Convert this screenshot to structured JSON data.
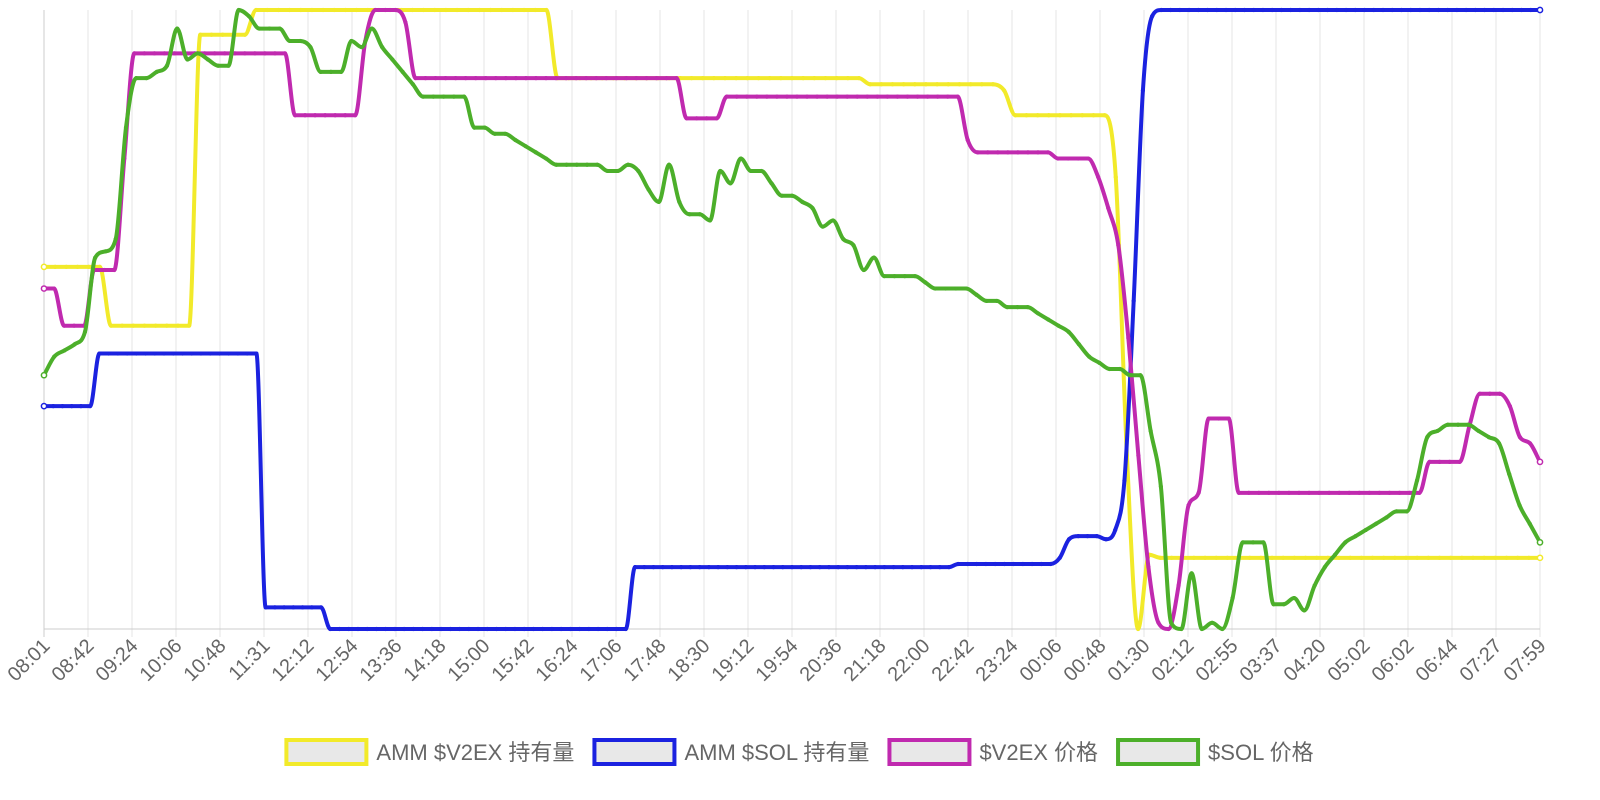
{
  "chart_data": {
    "type": "line",
    "x_ticks": [
      "08:01",
      "08:42",
      "09:24",
      "10:06",
      "10:48",
      "11:31",
      "12:12",
      "12:54",
      "13:36",
      "14:18",
      "15:00",
      "15:42",
      "16:24",
      "17:06",
      "17:48",
      "18:30",
      "19:12",
      "19:54",
      "20:36",
      "21:18",
      "22:00",
      "22:42",
      "23:24",
      "00:06",
      "00:48",
      "01:30",
      "02:12",
      "02:55",
      "03:37",
      "04:20",
      "05:02",
      "06:02",
      "06:44",
      "07:27",
      "07:59"
    ],
    "x_tick_rotation_deg": -45,
    "grid": {
      "vertical": true,
      "horizontal": false
    },
    "y_axis": {
      "visible_labels": false,
      "ylim": [
        0,
        100
      ]
    },
    "legend": {
      "position": "bottom"
    },
    "series": [
      {
        "name": "AMM $V2EX 持有量",
        "color": "#f2ea2a",
        "values": [
          58.5,
          58.5,
          58.5,
          58.5,
          58.5,
          58.5,
          49,
          49,
          49,
          49,
          49,
          49,
          49,
          49,
          96,
          96,
          96,
          96,
          96,
          100,
          100,
          100,
          100,
          100,
          100,
          100,
          100,
          100,
          100,
          100,
          100,
          100,
          100,
          100,
          100,
          100,
          100,
          100,
          100,
          100,
          100,
          100,
          100,
          100,
          100,
          100,
          89,
          89,
          89,
          89,
          89,
          89,
          89,
          89,
          89,
          89,
          89,
          89,
          89,
          89,
          89,
          89,
          89,
          89,
          89,
          89,
          89,
          89,
          89,
          89,
          89,
          89,
          89,
          89,
          88,
          88,
          88,
          88,
          88,
          88,
          88,
          88,
          88,
          88,
          88,
          88,
          87,
          83,
          83,
          83,
          83,
          83,
          83,
          83,
          83,
          83,
          73,
          28,
          0,
          12,
          11.5,
          11.5,
          11.5,
          11.5,
          11.5,
          11.5,
          11.5,
          11.5,
          11.5,
          11.5,
          11.5,
          11.5,
          11.5,
          11.5,
          11.5,
          11.5,
          11.5,
          11.5,
          11.5,
          11.5,
          11.5,
          11.5,
          11.5,
          11.5,
          11.5,
          11.5,
          11.5,
          11.5,
          11.5,
          11.5,
          11.5,
          11.5,
          11.5,
          11.5,
          11.5
        ]
      },
      {
        "name": "AMM $SOL 持有量",
        "color": "#1b22e0",
        "values": [
          36,
          36,
          36,
          36,
          36,
          36,
          44.5,
          44.5,
          44.5,
          44.5,
          44.5,
          44.5,
          44.5,
          44.5,
          44.5,
          44.5,
          44.5,
          44.5,
          44.5,
          44.5,
          44.5,
          44.5,
          44.5,
          44.5,
          3.5,
          3.5,
          3.5,
          3.5,
          3.5,
          3.5,
          3.5,
          0,
          0,
          0,
          0,
          0,
          0,
          0,
          0,
          0,
          0,
          0,
          0,
          0,
          0,
          0,
          0,
          0,
          0,
          0,
          0,
          0,
          0,
          0,
          0,
          0,
          0,
          0,
          0,
          0,
          0,
          0,
          0,
          0,
          10,
          10,
          10,
          10,
          10,
          10,
          10,
          10,
          10,
          10,
          10,
          10,
          10,
          10,
          10,
          10,
          10,
          10,
          10,
          10,
          10,
          10,
          10,
          10,
          10,
          10,
          10,
          10,
          10,
          10,
          10,
          10,
          10,
          10,
          10,
          10.5,
          10.5,
          10.5,
          10.5,
          10.5,
          10.5,
          10.5,
          10.5,
          10.5,
          10.5,
          10.5,
          11.5,
          14.5,
          15,
          15,
          15,
          14.5,
          16,
          24,
          53,
          87,
          99,
          100,
          100,
          100,
          100,
          100,
          100,
          100,
          100,
          100,
          100,
          100,
          100,
          100,
          100,
          100,
          100,
          100,
          100,
          100,
          100,
          100,
          100,
          100,
          100,
          100,
          100,
          100,
          100,
          100,
          100,
          100,
          100,
          100,
          100,
          100,
          100,
          100,
          100,
          100,
          100,
          100,
          100
        ]
      },
      {
        "name": "$V2EX 价格",
        "color": "#c02aaf",
        "values": [
          55,
          55,
          49,
          49,
          49,
          58,
          58,
          58,
          76,
          93,
          93,
          93,
          93,
          93,
          93,
          93,
          93,
          93,
          93,
          93,
          93,
          93,
          93,
          93,
          93,
          83,
          83,
          83,
          83,
          83,
          83,
          83,
          95,
          100,
          100,
          100,
          98,
          89,
          89,
          89,
          89,
          89,
          89,
          89,
          89,
          89,
          89,
          89,
          89,
          89,
          89,
          89,
          89,
          89,
          89,
          89,
          89,
          89,
          89,
          89,
          89,
          89,
          89,
          89,
          82.5,
          82.5,
          82.5,
          82.5,
          86,
          86,
          86,
          86,
          86,
          86,
          86,
          86,
          86,
          86,
          86,
          86,
          86,
          86,
          86,
          86,
          86,
          86,
          86,
          86,
          86,
          86,
          86,
          86,
          79,
          77,
          77,
          77,
          77,
          77,
          77,
          77,
          77,
          76,
          76,
          76,
          76,
          73,
          68,
          62,
          47,
          28,
          10,
          1,
          0,
          7,
          20,
          22,
          34,
          34,
          34,
          22,
          22,
          22,
          22,
          22,
          22,
          22,
          22,
          22,
          22,
          22,
          22,
          22,
          22,
          22,
          22,
          22,
          22,
          22,
          27,
          27,
          27,
          27,
          33,
          38,
          38,
          38,
          36,
          31,
          30,
          27
        ]
      },
      {
        "name": "$SOL 价格",
        "color": "#4caf2a",
        "values": [
          41,
          44,
          45,
          46,
          48,
          60,
          61,
          63,
          81,
          89,
          89,
          90,
          91,
          97,
          92,
          93,
          92,
          91,
          91,
          100,
          99,
          97,
          97,
          97,
          95,
          95,
          94,
          90,
          90,
          90,
          95,
          94,
          97,
          94,
          92,
          90,
          88,
          86,
          86,
          86,
          86,
          86,
          81,
          81,
          80,
          80,
          79,
          78,
          77,
          76,
          75,
          75,
          75,
          75,
          75,
          74,
          74,
          75,
          74,
          71,
          69,
          75,
          69,
          67,
          67,
          66,
          74,
          72,
          76,
          74,
          74,
          72,
          70,
          70,
          69,
          68,
          65,
          66,
          63,
          62,
          58,
          60,
          57,
          57,
          57,
          57,
          56,
          55,
          55,
          55,
          55,
          54,
          53,
          53,
          52,
          52,
          52,
          51,
          50,
          49,
          48,
          46,
          44,
          43,
          42,
          42,
          41,
          41,
          32,
          23,
          1,
          0,
          9,
          0,
          1,
          0,
          5,
          14,
          14,
          14,
          4,
          4,
          5,
          3,
          7,
          10,
          12,
          14,
          15,
          16,
          17,
          18,
          19,
          19,
          24,
          31,
          32,
          33,
          33,
          33,
          32,
          31,
          30,
          25,
          20,
          17,
          14
        ]
      }
    ]
  }
}
